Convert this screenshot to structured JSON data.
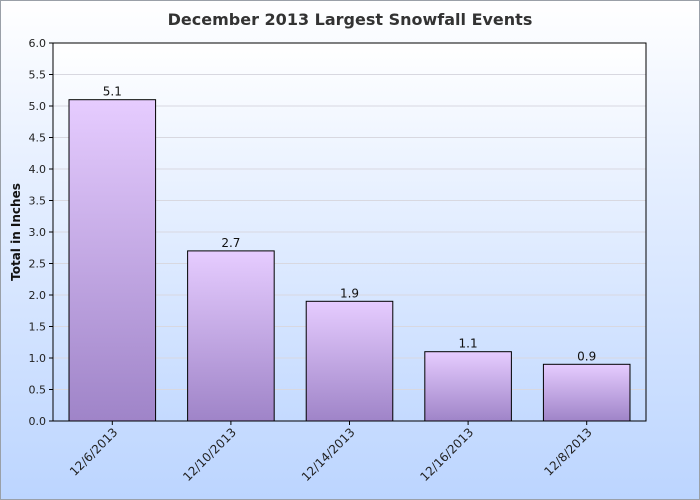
{
  "chart_data": {
    "type": "bar",
    "title": "December 2013 Largest Snowfall Events",
    "xlabel": "",
    "ylabel": "Total in Inches",
    "categories": [
      "12/6/2013",
      "12/10/2013",
      "12/14/2013",
      "12/16/2013",
      "12/8/2013"
    ],
    "values": [
      5.1,
      2.7,
      1.9,
      1.1,
      0.9
    ],
    "data_labels": [
      "5.1",
      "2.7",
      "1.9",
      "1.1",
      "0.9"
    ],
    "ylim": [
      0,
      6
    ],
    "yticks": [
      "0.0",
      "0.5",
      "1.0",
      "1.5",
      "2.0",
      "2.5",
      "3.0",
      "3.5",
      "4.0",
      "4.5",
      "5.0",
      "5.5",
      "6.0"
    ],
    "grid": true,
    "legend": "none",
    "colors": {
      "bar_top": "#e6ccff",
      "bar_bottom": "#9f84c8",
      "plot_top": "#ffffff",
      "plot_bottom": "#c4daff",
      "grid": "#d8d8e0"
    }
  }
}
